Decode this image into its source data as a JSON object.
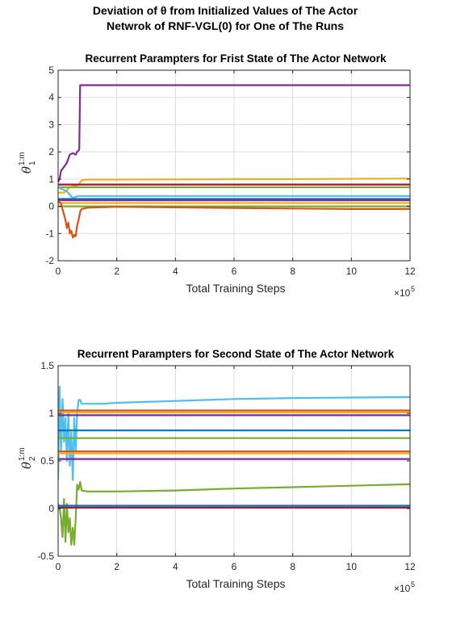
{
  "figure_title_line1": "Deviation of θ from Initialized Values of The Actor",
  "figure_title_line2": "Netwrok of RNF-VGL(0) for One of The Runs",
  "chart_data": [
    {
      "type": "line",
      "title": "Recurrent Parampters for Frist State of The Actor Network",
      "xlabel": "Total Training Steps",
      "ylabel_symbol": "θ",
      "ylabel_superscript": "1:m",
      "ylabel_subscript": "1",
      "x_multiplier": "×10",
      "x_multiplier_exp": "5",
      "xlim": [
        0,
        12
      ],
      "ylim": [
        -2,
        5
      ],
      "xticks": [
        0,
        2,
        4,
        6,
        8,
        10,
        12
      ],
      "yticks": [
        -2,
        -1,
        0,
        1,
        2,
        3,
        4,
        5
      ],
      "grid": true,
      "series": [
        {
          "color": "#7E2F8E",
          "x": [
            0,
            0.05,
            0.1,
            0.2,
            0.3,
            0.4,
            0.5,
            0.6,
            0.65,
            0.7,
            0.72,
            0.75,
            0.8,
            12
          ],
          "y": [
            0.9,
            1.0,
            1.3,
            1.45,
            1.6,
            1.9,
            1.95,
            1.9,
            2.0,
            2.05,
            2.1,
            4.45,
            4.45,
            4.45
          ]
        },
        {
          "color": "#EDB120",
          "x": [
            0,
            0.2,
            0.4,
            0.6,
            0.7,
            0.8,
            1.0,
            2,
            4,
            6,
            8,
            10,
            12
          ],
          "y": [
            0.5,
            0.5,
            0.7,
            0.75,
            0.8,
            0.95,
            0.98,
            0.98,
            0.99,
            1.0,
            1.0,
            1.01,
            1.02
          ]
        },
        {
          "color": "#A2142F",
          "x": [
            0,
            12
          ],
          "y": [
            0.8,
            0.8
          ]
        },
        {
          "color": "#77AC30",
          "x": [
            0,
            12
          ],
          "y": [
            0.7,
            0.7
          ]
        },
        {
          "color": "#4DBEEE",
          "x": [
            0,
            0.3,
            0.5,
            0.6,
            0.7,
            12
          ],
          "y": [
            0.7,
            0.55,
            0.3,
            0.35,
            0.38,
            0.38
          ]
        },
        {
          "color": "#0072BD",
          "x": [
            0,
            12
          ],
          "y": [
            0.27,
            0.27
          ]
        },
        {
          "color": "#7E2F8E",
          "x": [
            0,
            12
          ],
          "y": [
            0.22,
            0.22
          ]
        },
        {
          "color": "#EDB120",
          "x": [
            0,
            12
          ],
          "y": [
            0.12,
            0.12
          ]
        },
        {
          "color": "#77AC30",
          "x": [
            0,
            12
          ],
          "y": [
            0.0,
            0.0
          ]
        },
        {
          "color": "#D95319",
          "x": [
            0,
            0.1,
            0.2,
            0.25,
            0.3,
            0.35,
            0.4,
            0.45,
            0.5,
            0.55,
            0.6,
            0.65,
            0.7,
            0.75,
            0.8,
            1.0,
            2,
            4,
            6,
            8,
            10,
            12
          ],
          "y": [
            0.2,
            0.1,
            -0.3,
            -0.5,
            -0.8,
            -0.6,
            -1.0,
            -0.9,
            -1.15,
            -1.05,
            -1.1,
            -0.7,
            -0.5,
            -0.2,
            -0.1,
            -0.05,
            -0.02,
            -0.04,
            -0.06,
            -0.08,
            -0.1,
            -0.1
          ]
        }
      ]
    },
    {
      "type": "line",
      "title": "Recurrent Parampters for Second State of The Actor Network",
      "xlabel": "Total Training Steps",
      "ylabel_symbol": "θ",
      "ylabel_superscript": "1:m",
      "ylabel_subscript": "2",
      "x_multiplier": "×10",
      "x_multiplier_exp": "5",
      "xlim": [
        0,
        12
      ],
      "ylim": [
        -0.5,
        1.5
      ],
      "xticks": [
        0,
        2,
        4,
        6,
        8,
        10,
        12
      ],
      "yticks": [
        -0.5,
        0,
        0.5,
        1,
        1.5
      ],
      "grid": true,
      "series": [
        {
          "color": "#4DBEEE",
          "x": [
            0,
            0.05,
            0.1,
            0.15,
            0.2,
            0.25,
            0.3,
            0.35,
            0.4,
            0.45,
            0.5,
            0.55,
            0.6,
            0.65,
            0.7,
            0.75,
            0.8,
            1.0,
            1.5,
            2,
            4,
            6,
            8,
            10,
            12
          ],
          "y": [
            0.3,
            1.28,
            0.6,
            1.15,
            0.7,
            0.95,
            0.5,
            1.0,
            0.45,
            0.8,
            0.3,
            0.95,
            0.6,
            1.0,
            1.14,
            1.14,
            1.1,
            1.1,
            1.1,
            1.11,
            1.13,
            1.15,
            1.16,
            1.165,
            1.17
          ]
        },
        {
          "color": "#D95319",
          "x": [
            0,
            12
          ],
          "y": [
            1.03,
            1.03
          ]
        },
        {
          "color": "#EDB120",
          "x": [
            0,
            12
          ],
          "y": [
            1.01,
            1.01
          ]
        },
        {
          "color": "#7E2F8E",
          "x": [
            0,
            12
          ],
          "y": [
            0.98,
            0.98
          ]
        },
        {
          "color": "#0072BD",
          "x": [
            0,
            12
          ],
          "y": [
            0.82,
            0.82
          ]
        },
        {
          "color": "#77AC30",
          "x": [
            0,
            12
          ],
          "y": [
            0.74,
            0.74
          ]
        },
        {
          "color": "#D95319",
          "x": [
            0,
            12
          ],
          "y": [
            0.6,
            0.6
          ]
        },
        {
          "color": "#EDB120",
          "x": [
            0,
            12
          ],
          "y": [
            0.58,
            0.58
          ]
        },
        {
          "color": "#7E2F8E",
          "x": [
            0,
            12
          ],
          "y": [
            0.52,
            0.52
          ]
        },
        {
          "color": "#77AC30",
          "x": [
            0,
            0.05,
            0.1,
            0.15,
            0.2,
            0.25,
            0.3,
            0.35,
            0.4,
            0.45,
            0.5,
            0.55,
            0.6,
            0.65,
            0.7,
            0.75,
            0.8,
            1.0,
            1.5,
            2,
            4,
            6,
            8,
            10,
            12
          ],
          "y": [
            0.05,
            0.0,
            -0.1,
            -0.3,
            0.1,
            -0.35,
            0.05,
            -0.25,
            -0.1,
            -0.38,
            -0.2,
            -0.38,
            -0.1,
            0.25,
            0.2,
            0.28,
            0.19,
            0.18,
            0.18,
            0.18,
            0.19,
            0.21,
            0.225,
            0.24,
            0.255
          ]
        },
        {
          "color": "#0072BD",
          "x": [
            0,
            12
          ],
          "y": [
            0.03,
            0.03
          ]
        },
        {
          "color": "#A2142F",
          "x": [
            0,
            12
          ],
          "y": [
            0.01,
            0.01
          ]
        }
      ]
    }
  ]
}
